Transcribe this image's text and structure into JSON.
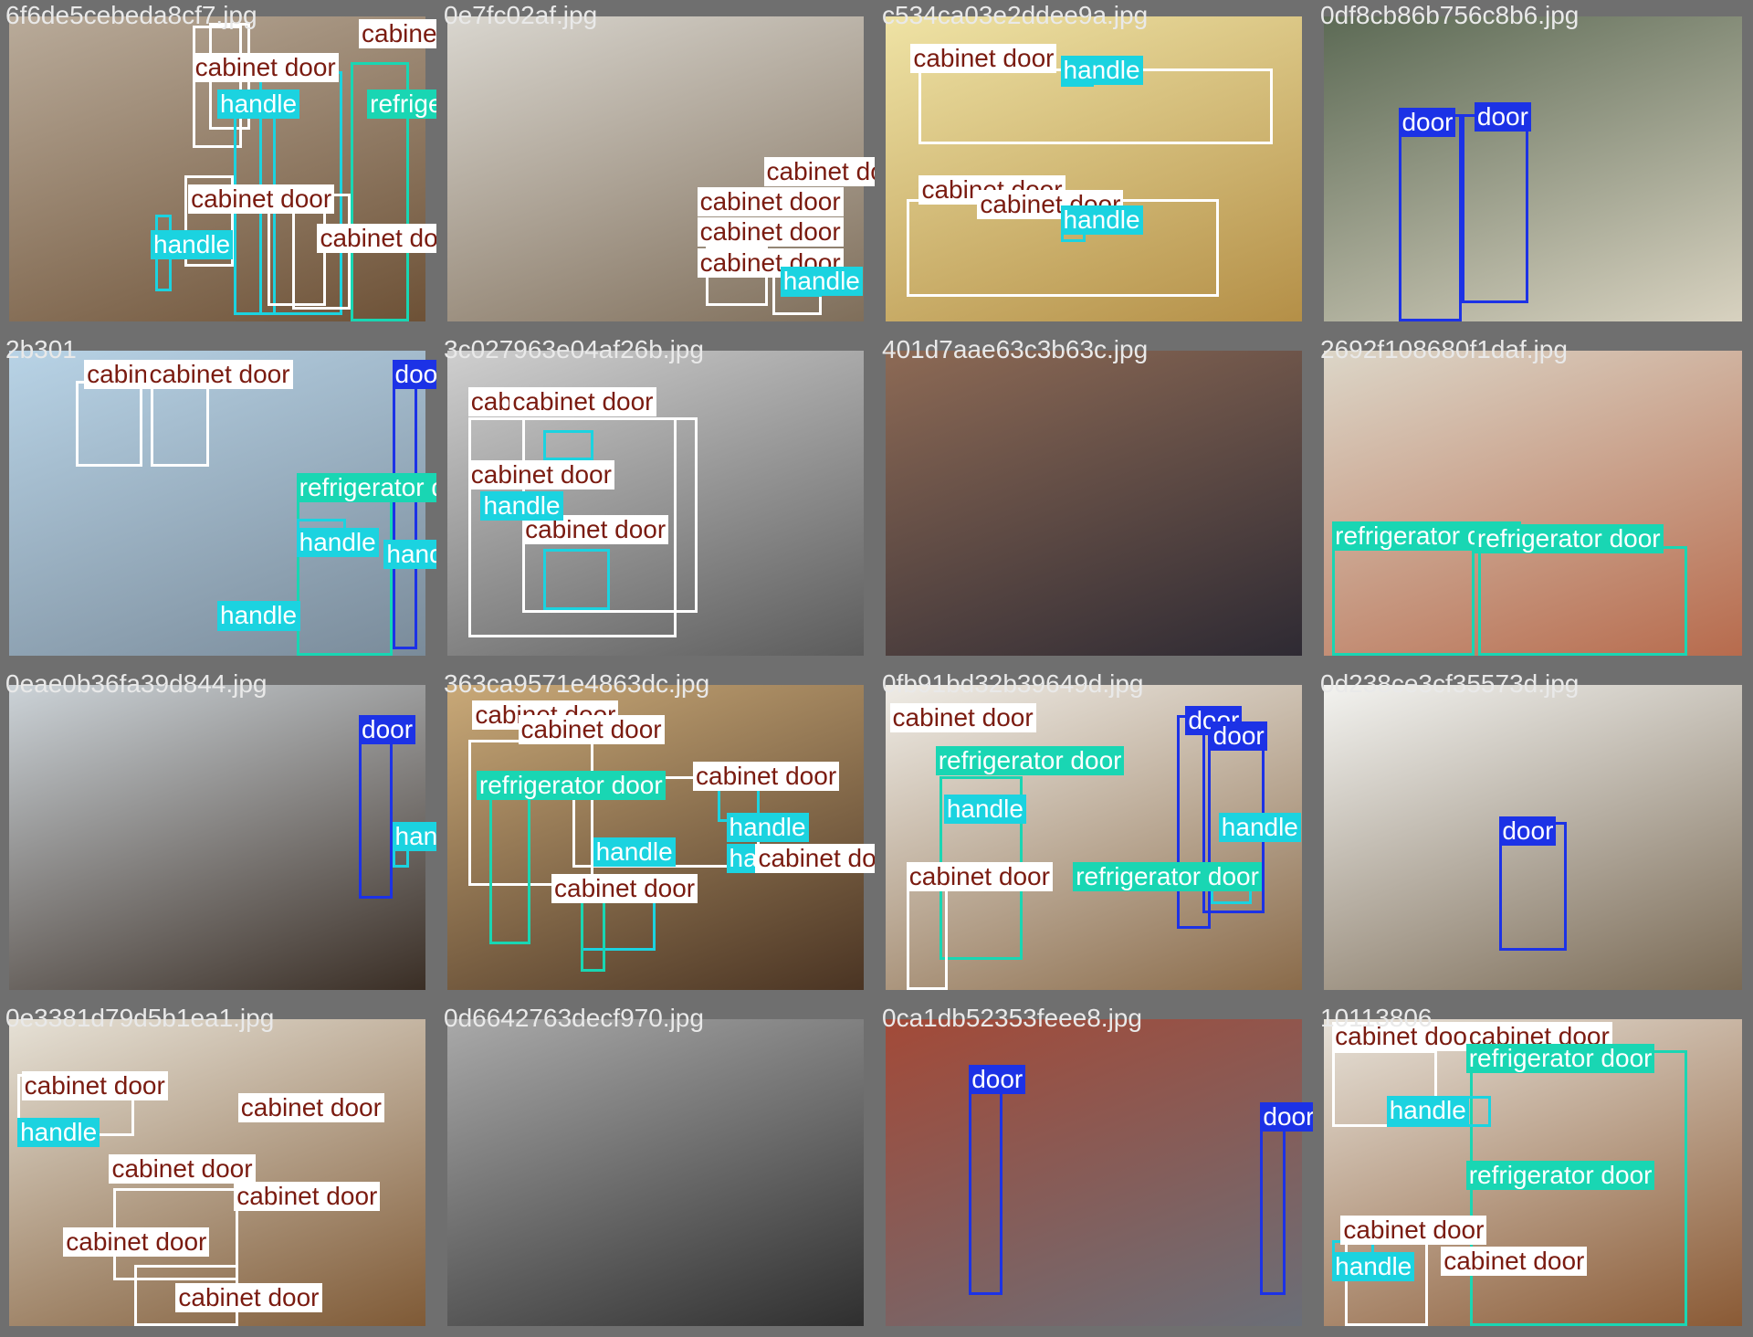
{
  "colors": {
    "background": "#6f6f6f",
    "cabinet_door": "#ffffff",
    "handle": "#1bd3e0",
    "door": "#1c32e6",
    "refrigerator_door": "#19d6b3",
    "filename_text": "#e9e9e9",
    "label_text_dark": "#7a1b10",
    "label_text_light": "#ffffff"
  },
  "classes": {
    "cabinet_door": "cabinet door",
    "handle": "handle",
    "door": "door",
    "refrigerator_door": "refrigerator door"
  },
  "tiles": [
    {
      "filename": "6f6de5cebeda8cf7.jpg",
      "tone": [
        "#b9ab9a",
        "#6d5136"
      ],
      "boxes": [
        [
          "cabinet_door",
          0.44,
          0.03,
          0.12,
          0.4
        ],
        [
          "cabinet_door",
          0.48,
          0.02,
          0.1,
          0.35
        ],
        [
          "handle",
          0.54,
          0.28,
          0.1,
          0.7
        ],
        [
          "handle",
          0.6,
          0.18,
          0.2,
          0.8
        ],
        [
          "cabinet_door",
          0.62,
          0.55,
          0.14,
          0.4
        ],
        [
          "cabinet_door",
          0.68,
          0.58,
          0.14,
          0.38
        ],
        [
          "handle",
          0.35,
          0.65,
          0.04,
          0.25
        ],
        [
          "refrigerator_door",
          0.82,
          0.15,
          0.14,
          0.85
        ],
        [
          "cabinet_door",
          0.42,
          0.52,
          0.12,
          0.3
        ]
      ],
      "labels": [
        [
          "cabinet_door",
          0.84,
          0.01
        ],
        [
          "cabinet_door",
          0.44,
          0.12
        ],
        [
          "handle",
          0.5,
          0.24
        ],
        [
          "refrigerator_door",
          0.86,
          0.24
        ],
        [
          "cabinet_door",
          0.43,
          0.55
        ],
        [
          "cabinet_door",
          0.74,
          0.68
        ],
        [
          "handle",
          0.34,
          0.7
        ]
      ]
    },
    {
      "filename": "0e7fc02af.jpg",
      "tone": [
        "#d9d6cf",
        "#7f6e5a"
      ],
      "boxes": [
        [
          "cabinet_door",
          0.62,
          0.75,
          0.15,
          0.2
        ],
        [
          "cabinet_door",
          0.78,
          0.8,
          0.12,
          0.18
        ],
        [
          "handle",
          0.8,
          0.82,
          0.1,
          0.1
        ]
      ],
      "labels": [
        [
          "cabinet_door",
          0.76,
          0.46
        ],
        [
          "cabinet_door",
          0.6,
          0.56
        ],
        [
          "cabinet_door",
          0.6,
          0.66
        ],
        [
          "cabinet_door",
          0.6,
          0.76
        ],
        [
          "handle",
          0.8,
          0.82
        ]
      ]
    },
    {
      "filename": "c534ca03e2ddee9a.jpg",
      "tone": [
        "#efe3a5",
        "#b48f47"
      ],
      "boxes": [
        [
          "cabinet_door",
          0.08,
          0.17,
          0.85,
          0.25
        ],
        [
          "cabinet_door",
          0.05,
          0.6,
          0.75,
          0.32
        ],
        [
          "handle",
          0.42,
          0.17,
          0.08,
          0.06
        ],
        [
          "handle",
          0.42,
          0.68,
          0.06,
          0.06
        ]
      ],
      "labels": [
        [
          "cabinet_door",
          0.06,
          0.09
        ],
        [
          "handle",
          0.42,
          0.13
        ],
        [
          "cabinet_door",
          0.08,
          0.52
        ],
        [
          "cabinet_door",
          0.22,
          0.57
        ],
        [
          "handle",
          0.42,
          0.62
        ]
      ]
    },
    {
      "filename": "0df8cb86b756c8b6.jpg",
      "tone": [
        "#5c6a55",
        "#d8d2c0"
      ],
      "boxes": [
        [
          "door",
          0.18,
          0.32,
          0.15,
          0.68
        ],
        [
          "door",
          0.33,
          0.32,
          0.16,
          0.62
        ]
      ],
      "labels": [
        [
          "door",
          0.18,
          0.3
        ],
        [
          "door",
          0.36,
          0.28
        ]
      ]
    },
    {
      "filename": "2b301",
      "tone": [
        "#b8d3e6",
        "#7a8b9a"
      ],
      "boxes": [
        [
          "cabinet_door",
          0.16,
          0.1,
          0.16,
          0.28
        ],
        [
          "cabinet_door",
          0.34,
          0.1,
          0.14,
          0.28
        ],
        [
          "door",
          0.92,
          0.03,
          0.06,
          0.95
        ],
        [
          "refrigerator_door",
          0.69,
          0.4,
          0.23,
          0.6
        ],
        [
          "handle",
          0.69,
          0.55,
          0.12,
          0.1
        ],
        [
          "handle",
          0.5,
          0.82,
          0.2,
          0.1
        ]
      ],
      "labels": [
        [
          "cabinet_door",
          0.18,
          0.03
        ],
        [
          "cabinet_door",
          0.33,
          0.03
        ],
        [
          "door",
          0.92,
          0.03
        ],
        [
          "refrigerator_door",
          0.69,
          0.4
        ],
        [
          "handle",
          0.69,
          0.58
        ],
        [
          "handle",
          0.9,
          0.62
        ],
        [
          "handle",
          0.5,
          0.82
        ]
      ]
    },
    {
      "filename": "3c027963e04af26b.jpg",
      "tone": [
        "#cfcfcf",
        "#5c5c5c"
      ],
      "boxes": [
        [
          "cabinet_door",
          0.05,
          0.22,
          0.5,
          0.72
        ],
        [
          "cabinet_door",
          0.18,
          0.22,
          0.42,
          0.64
        ],
        [
          "handle",
          0.23,
          0.26,
          0.12,
          0.1
        ],
        [
          "handle",
          0.23,
          0.65,
          0.16,
          0.2
        ]
      ],
      "labels": [
        [
          "cabinet_door",
          0.05,
          0.12
        ],
        [
          "cabinet_door",
          0.15,
          0.12
        ],
        [
          "cabinet_door",
          0.05,
          0.36
        ],
        [
          "cabinet_door",
          0.18,
          0.54
        ],
        [
          "handle",
          0.08,
          0.46
        ]
      ]
    },
    {
      "filename": "401d7aae63c3b63c.jpg",
      "tone": [
        "#8d6a55",
        "#2e2a33"
      ],
      "boxes": [],
      "labels": []
    },
    {
      "filename": "2692f108680f1daf.jpg",
      "tone": [
        "#dcd6c8",
        "#b76b4d"
      ],
      "boxes": [
        [
          "refrigerator_door",
          0.02,
          0.64,
          0.34,
          0.36
        ],
        [
          "refrigerator_door",
          0.37,
          0.64,
          0.5,
          0.36
        ]
      ],
      "labels": [
        [
          "refrigerator_door",
          0.02,
          0.56
        ],
        [
          "refrigerator_door",
          0.36,
          0.57
        ]
      ]
    },
    {
      "filename": "0eae0b36fa39d844.jpg",
      "tone": [
        "#ccd3d8",
        "#3a2e25"
      ],
      "boxes": [
        [
          "door",
          0.84,
          0.1,
          0.08,
          0.6
        ],
        [
          "handle",
          0.92,
          0.5,
          0.04,
          0.1
        ]
      ],
      "labels": [
        [
          "door",
          0.84,
          0.1
        ],
        [
          "handle",
          0.92,
          0.45
        ]
      ]
    },
    {
      "filename": "363ca9571e4863dc.jpg",
      "tone": [
        "#c9a978",
        "#4a3423"
      ],
      "boxes": [
        [
          "cabinet_door",
          0.05,
          0.18,
          0.3,
          0.48
        ],
        [
          "cabinet_door",
          0.3,
          0.3,
          0.45,
          0.3
        ],
        [
          "refrigerator_door",
          0.1,
          0.35,
          0.1,
          0.5
        ],
        [
          "handle",
          0.65,
          0.3,
          0.1,
          0.15
        ],
        [
          "handle",
          0.32,
          0.62,
          0.18,
          0.25
        ],
        [
          "refrigerator_door",
          0.32,
          0.7,
          0.06,
          0.24
        ]
      ],
      "labels": [
        [
          "cabinet_door",
          0.06,
          0.05
        ],
        [
          "cabinet_door",
          0.17,
          0.1
        ],
        [
          "cabinet_door",
          0.59,
          0.25
        ],
        [
          "refrigerator_door",
          0.07,
          0.28
        ],
        [
          "handle",
          0.67,
          0.42
        ],
        [
          "handle",
          0.35,
          0.5
        ],
        [
          "handle",
          0.67,
          0.52
        ],
        [
          "cabinet_door",
          0.25,
          0.62
        ],
        [
          "cabinet_door",
          0.74,
          0.52
        ]
      ]
    },
    {
      "filename": "0fb91bd32b39649d.jpg",
      "tone": [
        "#efece6",
        "#8a6b4a"
      ],
      "boxes": [
        [
          "door",
          0.7,
          0.1,
          0.08,
          0.7
        ],
        [
          "door",
          0.76,
          0.15,
          0.15,
          0.6
        ],
        [
          "refrigerator_door",
          0.13,
          0.3,
          0.2,
          0.6
        ],
        [
          "cabinet_door",
          0.05,
          0.65,
          0.1,
          0.35
        ],
        [
          "handle",
          0.78,
          0.6,
          0.1,
          0.12
        ]
      ],
      "labels": [
        [
          "cabinet_door",
          0.01,
          0.06
        ],
        [
          "refrigerator_door",
          0.12,
          0.2
        ],
        [
          "door",
          0.72,
          0.07
        ],
        [
          "door",
          0.78,
          0.12
        ],
        [
          "handle",
          0.14,
          0.36
        ],
        [
          "cabinet_door",
          0.05,
          0.58
        ],
        [
          "refrigerator_door",
          0.45,
          0.58
        ],
        [
          "handle",
          0.8,
          0.42
        ]
      ]
    },
    {
      "filename": "0d238ce3cf35573d.jpg",
      "tone": [
        "#f3f3f0",
        "#7a6a55"
      ],
      "boxes": [
        [
          "door",
          0.42,
          0.45,
          0.16,
          0.42
        ]
      ],
      "labels": [
        [
          "door",
          0.42,
          0.43
        ]
      ]
    },
    {
      "filename": "0e3381d79d5b1ea1.jpg",
      "tone": [
        "#e6e1d6",
        "#7f5a36"
      ],
      "boxes": [
        [
          "cabinet_door",
          0.02,
          0.18,
          0.28,
          0.2
        ],
        [
          "cabinet_door",
          0.25,
          0.55,
          0.3,
          0.3
        ],
        [
          "cabinet_door",
          0.3,
          0.8,
          0.25,
          0.2
        ],
        [
          "handle",
          0.02,
          0.32,
          0.1,
          0.08
        ]
      ],
      "labels": [
        [
          "cabinet_door",
          0.03,
          0.17
        ],
        [
          "cabinet_door",
          0.55,
          0.24
        ],
        [
          "handle",
          0.02,
          0.32
        ],
        [
          "cabinet_door",
          0.24,
          0.44
        ],
        [
          "cabinet_door",
          0.54,
          0.53
        ],
        [
          "cabinet_door",
          0.13,
          0.68
        ],
        [
          "cabinet_door",
          0.4,
          0.86
        ]
      ]
    },
    {
      "filename": "0d6642763decf970.jpg",
      "tone": [
        "#a9a9a9",
        "#2f2f2f"
      ],
      "boxes": [],
      "labels": []
    },
    {
      "filename": "0ca1db52353feee8.jpg",
      "tone": [
        "#a34a38",
        "#6a6e77"
      ],
      "boxes": [
        [
          "door",
          0.2,
          0.2,
          0.08,
          0.7
        ],
        [
          "door",
          0.9,
          0.28,
          0.06,
          0.62
        ]
      ],
      "labels": [
        [
          "door",
          0.2,
          0.15
        ],
        [
          "door",
          0.9,
          0.27
        ]
      ]
    },
    {
      "filename": "10113806",
      "tone": [
        "#e7e2d9",
        "#8a5a35"
      ],
      "boxes": [
        [
          "refrigerator_door",
          0.35,
          0.1,
          0.52,
          0.9
        ],
        [
          "cabinet_door",
          0.02,
          0.1,
          0.25,
          0.25
        ],
        [
          "cabinet_door",
          0.05,
          0.72,
          0.2,
          0.28
        ],
        [
          "handle",
          0.15,
          0.25,
          0.25,
          0.1
        ],
        [
          "handle",
          0.02,
          0.72,
          0.1,
          0.1
        ]
      ],
      "labels": [
        [
          "cabinet_door",
          0.02,
          0.01
        ],
        [
          "cabinet_door",
          0.34,
          0.01
        ],
        [
          "refrigerator_door",
          0.34,
          0.08
        ],
        [
          "handle",
          0.15,
          0.25
        ],
        [
          "refrigerator_door",
          0.34,
          0.46
        ],
        [
          "cabinet_door",
          0.04,
          0.64
        ],
        [
          "handle",
          0.02,
          0.76
        ],
        [
          "cabinet_door",
          0.28,
          0.74
        ]
      ]
    }
  ]
}
